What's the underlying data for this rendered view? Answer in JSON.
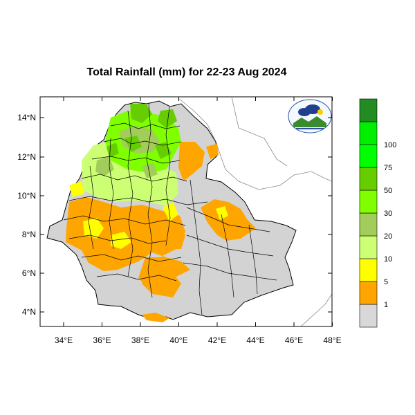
{
  "title": "Total Rainfall (mm) for 22-23 Aug 2024",
  "lat_labels": [
    "14°N",
    "12°N",
    "10°N",
    "8°N",
    "6°N",
    "4°N"
  ],
  "lon_labels": [
    "34°E",
    "36°E",
    "38°E",
    "40°E",
    "42°E",
    "44°E",
    "46°E",
    "48°E"
  ],
  "colorbar": {
    "colors": [
      "#d8d8d8",
      "#ffa500",
      "#ffff00",
      "#ccff73",
      "#a2cd5a",
      "#7fff00",
      "#66cd00",
      "#00ff00",
      "#00ee00",
      "#228b22"
    ],
    "labels": [
      "1",
      "5",
      "10",
      "20",
      "30",
      "50",
      "75",
      "100"
    ]
  },
  "colors": {
    "land": "#d3d3d3",
    "ocean": "#ffffff",
    "border": "#000000",
    "neighbor_border": "#777777"
  },
  "logo_icon": "ethiopian-meteorology-institute-logo"
}
